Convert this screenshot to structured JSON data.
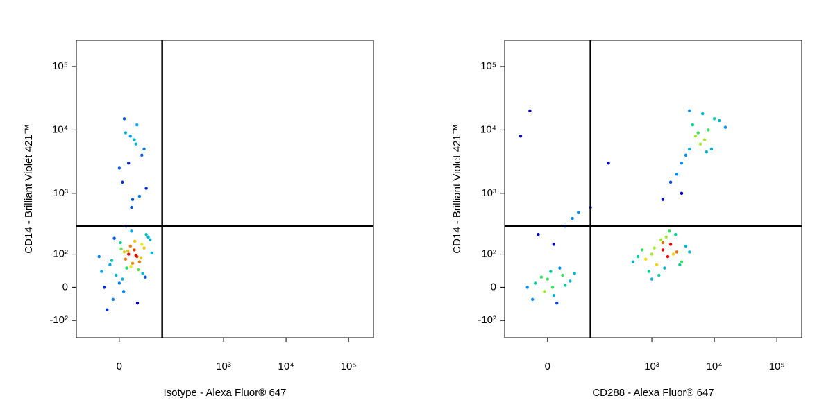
{
  "chart_data": [
    {
      "type": "scatter",
      "scale": "biexponential",
      "x_label": "Isotype - Alexa Fluor® 647",
      "y_label": "CD14 - Brilliant Violet 421™",
      "xlim": [
        -100,
        250000
      ],
      "ylim": [
        -200,
        260000
      ],
      "xticks": [
        0,
        {
          "value": 1000,
          "label": "10³"
        },
        {
          "value": 10000,
          "label": "10⁴"
        },
        {
          "value": 100000,
          "label": "10⁵"
        }
      ],
      "yticks": [
        {
          "value": -100,
          "label": "-10²"
        },
        0,
        {
          "value": 100,
          "label": "10²"
        },
        {
          "value": 1000,
          "label": "10³"
        },
        {
          "value": 10000,
          "label": "10⁴"
        },
        {
          "value": 100000,
          "label": "10⁵"
        }
      ],
      "gate_x": 100,
      "gate_y": 300,
      "x": [
        10,
        25,
        -15,
        40,
        5,
        30,
        -30,
        55,
        15,
        0,
        20,
        -10,
        35,
        45,
        8,
        -20,
        60,
        12,
        28,
        -5,
        18,
        38,
        2,
        -25,
        50,
        22,
        7,
        33,
        -12,
        14,
        26,
        42,
        -35,
        65,
        3,
        19,
        48,
        -8,
        31,
        11,
        20,
        35,
        5,
        15,
        45,
        25,
        10,
        30,
        40,
        0,
        28,
        18,
        50,
        22,
        8
      ],
      "values": [
        80,
        120,
        60,
        150,
        20,
        90,
        40,
        200,
        100,
        10,
        250,
        -30,
        70,
        130,
        110,
        -60,
        180,
        50,
        95,
        30,
        140,
        85,
        160,
        0,
        220,
        65,
        -10,
        45,
        75,
        115,
        170,
        35,
        90,
        105,
        125,
        55,
        25,
        190,
        -40,
        300,
        600,
        900,
        1500,
        3000,
        5000,
        7000,
        9000,
        12000,
        4000,
        2500,
        6000,
        8000,
        1200,
        800,
        15000
      ]
    },
    {
      "type": "scatter",
      "scale": "biexponential",
      "x_label": "CD288 - Alexa Fluor® 647",
      "y_label": "CD14 - Brilliant Violet 421™",
      "xlim": [
        -100,
        250000
      ],
      "ylim": [
        -200,
        260000
      ],
      "xticks": [
        0,
        {
          "value": 1000,
          "label": "10³"
        },
        {
          "value": 10000,
          "label": "10⁴"
        },
        {
          "value": 100000,
          "label": "10⁵"
        }
      ],
      "yticks": [
        {
          "value": -100,
          "label": "-10²"
        },
        0,
        {
          "value": 100,
          "label": "10²"
        },
        {
          "value": 1000,
          "label": "10³"
        },
        {
          "value": 10000,
          "label": "10⁴"
        },
        {
          "value": 100000,
          "label": "10⁵"
        }
      ],
      "gate_x": 100,
      "gate_y": 300,
      "x": [
        -20,
        0,
        10,
        25,
        -35,
        40,
        5,
        15,
        -10,
        30,
        20,
        -5,
        50,
        -25,
        8,
        10,
        30,
        -15,
        45,
        60,
        800,
        1000,
        1200,
        1500,
        1800,
        2000,
        2500,
        3000,
        900,
        1100,
        1400,
        1600,
        2200,
        700,
        1300,
        1700,
        3500,
        600,
        2800,
        1900,
        1000,
        1500,
        4000,
        500,
        2400,
        2000,
        3000,
        4000,
        5000,
        6000,
        8000,
        3500,
        4500,
        7000,
        10000,
        2500,
        5500,
        9000,
        12000,
        3000,
        6500,
        1500,
        15000,
        4000,
        7500,
        -30,
        -50,
        200,
        100
      ],
      "values": [
        10,
        20,
        -20,
        30,
        0,
        15,
        40,
        -40,
        25,
        5,
        50,
        -10,
        35,
        -30,
        0,
        150,
        300,
        220,
        400,
        500,
        80,
        100,
        60,
        120,
        90,
        150,
        110,
        70,
        40,
        130,
        180,
        50,
        100,
        120,
        30,
        200,
        140,
        90,
        60,
        250,
        20,
        160,
        110,
        70,
        220,
        1500,
        3000,
        5000,
        8000,
        6000,
        10000,
        4000,
        12000,
        7000,
        15000,
        2000,
        9000,
        5000,
        14000,
        1000,
        18000,
        800,
        11000,
        20000,
        4500,
        20000,
        8000,
        3000,
        600
      ]
    }
  ]
}
